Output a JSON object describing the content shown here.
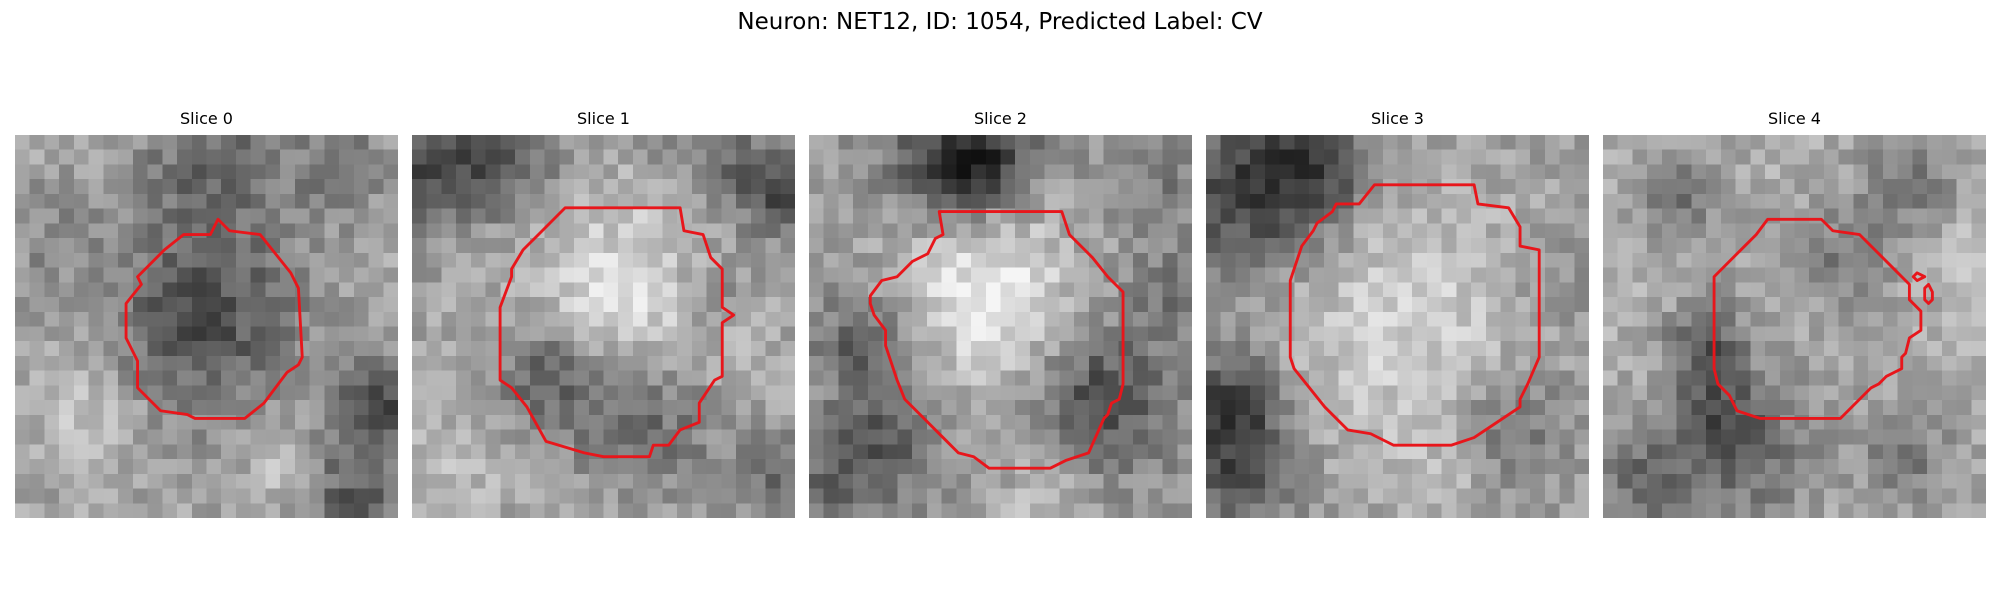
{
  "figure": {
    "title": "Neuron: NET12, ID: 1054, Predicted Label: CV"
  },
  "contour_color": "#e8161b",
  "panels": [
    {
      "title": "Slice 0",
      "image": "grayscale-cell-patch"
    },
    {
      "title": "Slice 1",
      "image": "grayscale-cell-patch"
    },
    {
      "title": "Slice 2",
      "image": "grayscale-cell-patch"
    },
    {
      "title": "Slice 3",
      "image": "grayscale-cell-patch"
    },
    {
      "title": "Slice 4",
      "image": "grayscale-cell-patch"
    }
  ]
}
